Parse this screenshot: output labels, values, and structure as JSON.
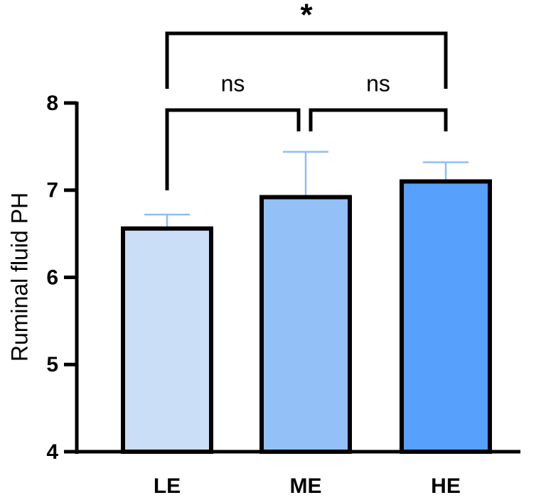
{
  "chart_data": {
    "type": "bar",
    "y_label": "Ruminal fluid PH",
    "categories": [
      "LE",
      "ME",
      "HE"
    ],
    "values": [
      6.56,
      6.92,
      7.1
    ],
    "errors": [
      0.16,
      0.52,
      0.22
    ],
    "colors": [
      "#cadef8",
      "#93c0f7",
      "#57a0fb"
    ],
    "error_color": "#8fbdf2",
    "ylim": [
      4,
      8
    ],
    "yticks": [
      4,
      5,
      6,
      7,
      8
    ],
    "comparisons": [
      {
        "groups": [
          0,
          1
        ],
        "label": "ns"
      },
      {
        "groups": [
          1,
          2
        ],
        "label": "ns"
      },
      {
        "groups": [
          0,
          2
        ],
        "label": "*"
      }
    ]
  }
}
